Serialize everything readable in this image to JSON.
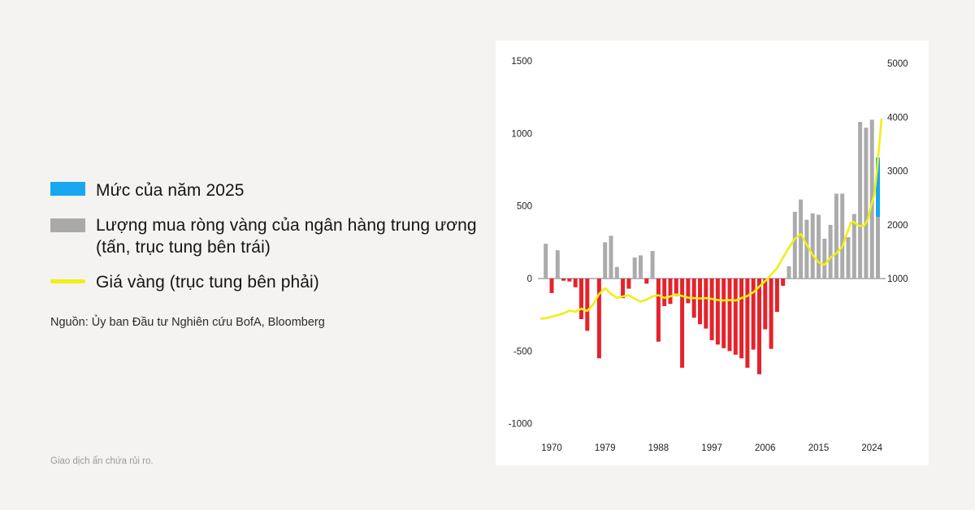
{
  "page": {
    "disclaimer": "Giao dịch ẩn chứa rủi ro."
  },
  "legend": {
    "level_2025": "Mức của năm 2025",
    "net_purchases_line1": "Lượng mua ròng vàng của ngân hàng trung ương",
    "net_purchases_line2": "(tấn, trục tung bên trái)",
    "gold_price": "Giá vàng (trục tung bên phải)",
    "source": "Nguồn: Ủy ban Đầu tư Nghiên cứu BofA, Bloomberg"
  },
  "colors": {
    "background": "#f4f3f1",
    "panel": "#ffffff",
    "blue": "#18a7f0",
    "gray_bar": "#ababab",
    "red_bar": "#e5232b",
    "gold_line": "#f0ef13",
    "text": "#151515",
    "axis_text": "#222222",
    "muted_text": "#9b9b9b",
    "axis_line": "#7a7a7a"
  },
  "chart_data": {
    "type": "bar",
    "title": "",
    "legend_position": "left",
    "grid": false,
    "left_axis": {
      "label": "tấn",
      "ticks": [
        1500,
        1000,
        500,
        0,
        -500,
        -1000
      ],
      "min": -1000,
      "max": 1500
    },
    "right_axis": {
      "label": "giá vàng",
      "ticks": [
        5000,
        4000,
        3000,
        2000,
        1000
      ],
      "min": 1000,
      "max": 5000
    },
    "x_axis": {
      "ticks": [
        1970,
        1979,
        1988,
        1997,
        2006,
        2015,
        2024
      ],
      "min": 1968,
      "max": 2026
    },
    "series": [
      {
        "name": "Lượng mua ròng vàng của ngân hàng trung ương (tấn, trục tung bên trái)",
        "type": "bar",
        "axis": "left",
        "positive_color": "#ababab",
        "negative_color": "#e5232b",
        "points": [
          [
            1969,
            240
          ],
          [
            1970,
            -100
          ],
          [
            1971,
            195
          ],
          [
            1972,
            -15
          ],
          [
            1973,
            -20
          ],
          [
            1974,
            -60
          ],
          [
            1975,
            -280
          ],
          [
            1976,
            -360
          ],
          [
            1977,
            0
          ],
          [
            1978,
            -550
          ],
          [
            1979,
            250
          ],
          [
            1980,
            295
          ],
          [
            1981,
            80
          ],
          [
            1982,
            -135
          ],
          [
            1983,
            -70
          ],
          [
            1984,
            145
          ],
          [
            1985,
            160
          ],
          [
            1986,
            -35
          ],
          [
            1987,
            190
          ],
          [
            1988,
            -435
          ],
          [
            1989,
            -190
          ],
          [
            1990,
            -175
          ],
          [
            1991,
            -120
          ],
          [
            1992,
            -615
          ],
          [
            1993,
            -170
          ],
          [
            1994,
            -270
          ],
          [
            1995,
            -315
          ],
          [
            1996,
            -345
          ],
          [
            1997,
            -425
          ],
          [
            1998,
            -455
          ],
          [
            1999,
            -480
          ],
          [
            2000,
            -500
          ],
          [
            2001,
            -525
          ],
          [
            2002,
            -550
          ],
          [
            2003,
            -615
          ],
          [
            2004,
            -490
          ],
          [
            2005,
            -660
          ],
          [
            2006,
            -350
          ],
          [
            2007,
            -485
          ],
          [
            2008,
            -230
          ],
          [
            2009,
            -50
          ],
          [
            2010,
            85
          ],
          [
            2011,
            460
          ],
          [
            2012,
            545
          ],
          [
            2013,
            405
          ],
          [
            2014,
            450
          ],
          [
            2015,
            440
          ],
          [
            2016,
            275
          ],
          [
            2017,
            370
          ],
          [
            2018,
            585
          ],
          [
            2019,
            585
          ],
          [
            2020,
            285
          ],
          [
            2021,
            445
          ],
          [
            2022,
            1080
          ],
          [
            2023,
            1040
          ],
          [
            2024,
            1095
          ],
          [
            2025,
            425
          ]
        ]
      },
      {
        "name": "Mức của năm 2025",
        "type": "bar-segment",
        "axis": "left",
        "year": 2025,
        "from": 425,
        "to": 835,
        "color": "#18a7f0"
      },
      {
        "name": "Giá vàng (trục tung bên phải)",
        "type": "line",
        "axis": "right",
        "color": "#f0ef13",
        "points": [
          [
            1968.2,
            255
          ],
          [
            1969,
            262
          ],
          [
            1970,
            290
          ],
          [
            1971,
            320
          ],
          [
            1972,
            350
          ],
          [
            1973,
            405
          ],
          [
            1974,
            382
          ],
          [
            1975,
            440
          ],
          [
            1976,
            398
          ],
          [
            1977,
            520
          ],
          [
            1978,
            715
          ],
          [
            1979,
            820
          ],
          [
            1980,
            715
          ],
          [
            1981,
            640
          ],
          [
            1982,
            668
          ],
          [
            1983,
            690
          ],
          [
            1984,
            622
          ],
          [
            1985,
            572
          ],
          [
            1986,
            607
          ],
          [
            1987,
            668
          ],
          [
            1988,
            690
          ],
          [
            1989,
            640
          ],
          [
            1990,
            668
          ],
          [
            1991,
            706
          ],
          [
            1992,
            675
          ],
          [
            1993,
            645
          ],
          [
            1994,
            638
          ],
          [
            1995,
            630
          ],
          [
            1996,
            638
          ],
          [
            1997,
            622
          ],
          [
            1998,
            600
          ],
          [
            1999,
            592
          ],
          [
            2000,
            600
          ],
          [
            2001,
            592
          ],
          [
            2002,
            638
          ],
          [
            2003,
            675
          ],
          [
            2004,
            745
          ],
          [
            2005,
            850
          ],
          [
            2006,
            955
          ],
          [
            2007,
            1075
          ],
          [
            2008,
            1195
          ],
          [
            2009,
            1390
          ],
          [
            2010,
            1575
          ],
          [
            2011,
            1740
          ],
          [
            2012,
            1830
          ],
          [
            2013,
            1635
          ],
          [
            2014,
            1440
          ],
          [
            2015,
            1300
          ],
          [
            2016,
            1255
          ],
          [
            2017,
            1390
          ],
          [
            2018,
            1470
          ],
          [
            2019,
            1590
          ],
          [
            2020.4,
            2030
          ],
          [
            2020.8,
            2060
          ],
          [
            2021.8,
            1980
          ],
          [
            2022.7,
            1980
          ],
          [
            2023.3,
            2100
          ],
          [
            2023.8,
            2330
          ],
          [
            2024.4,
            2560
          ],
          [
            2024.9,
            3080
          ],
          [
            2025.6,
            3960
          ]
        ]
      }
    ]
  }
}
